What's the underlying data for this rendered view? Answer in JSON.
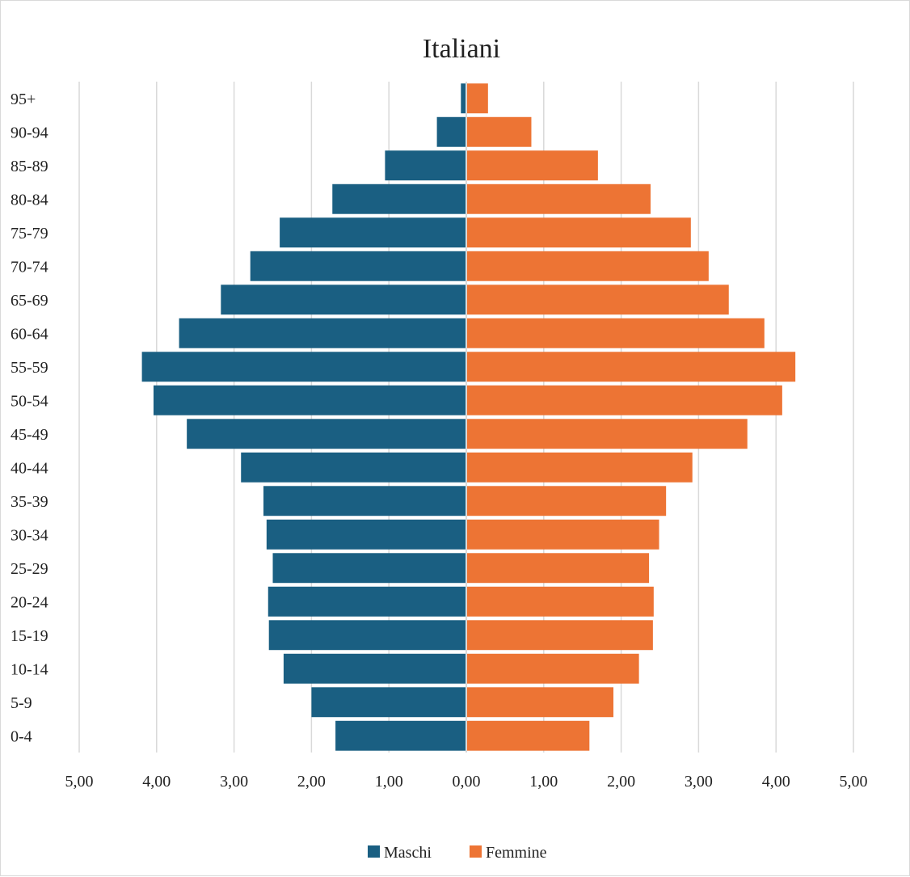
{
  "chart_data": {
    "type": "bar",
    "orientation": "horizontal-diverging",
    "title": "Italiani",
    "categories": [
      "95+",
      "90-94",
      "85-89",
      "80-84",
      "75-79",
      "70-74",
      "65-69",
      "60-64",
      "55-59",
      "50-54",
      "45-49",
      "40-44",
      "35-39",
      "30-34",
      "25-29",
      "20-24",
      "15-19",
      "10-14",
      "5-9",
      "0-4"
    ],
    "series": [
      {
        "name": "Maschi",
        "color": "#1a5f82",
        "side": "left",
        "values": [
          0.07,
          0.38,
          1.05,
          1.73,
          2.41,
          2.79,
          3.17,
          3.71,
          4.19,
          4.04,
          3.61,
          2.91,
          2.62,
          2.58,
          2.5,
          2.56,
          2.55,
          2.36,
          2.0,
          1.69
        ]
      },
      {
        "name": "Femmine",
        "color": "#ed7434",
        "side": "right",
        "values": [
          0.28,
          0.84,
          1.7,
          2.38,
          2.9,
          3.13,
          3.39,
          3.85,
          4.25,
          4.08,
          3.63,
          2.92,
          2.58,
          2.49,
          2.36,
          2.42,
          2.41,
          2.23,
          1.9,
          1.59
        ]
      }
    ],
    "xlim": [
      -5,
      5
    ],
    "tick_values": [
      -5,
      -4,
      -3,
      -2,
      -1,
      0,
      1,
      2,
      3,
      4,
      5
    ],
    "tick_labels": [
      "5,00",
      "4,00",
      "3,00",
      "2,00",
      "1,00",
      "0,00",
      "1,00",
      "2,00",
      "3,00",
      "4,00",
      "5,00"
    ],
    "grid": true,
    "legend_position": "bottom",
    "xlabel": "",
    "ylabel": ""
  }
}
